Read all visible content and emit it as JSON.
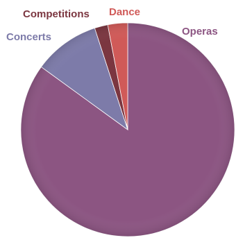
{
  "chart_data": {
    "type": "pie",
    "start_angle_deg": 0,
    "direction": "clockwise",
    "slices": [
      {
        "label": "Operas",
        "value": 85,
        "color": "#8c5582",
        "label_color": "#8c5582"
      },
      {
        "label": "Concerts",
        "value": 10,
        "color": "#7d7ba9",
        "label_color": "#7d7ba9"
      },
      {
        "label": "Competitions",
        "value": 2,
        "color": "#7b3640",
        "label_color": "#7b3640"
      },
      {
        "label": "Dance",
        "value": 3,
        "color": "#d05a58",
        "label_color": "#d05a58"
      }
    ]
  }
}
